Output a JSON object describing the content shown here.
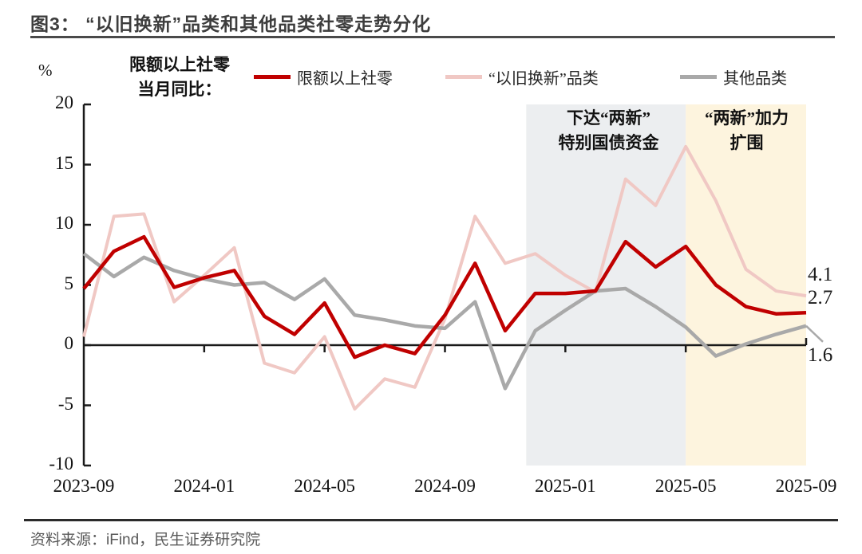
{
  "header": {
    "title": "图3：  “以旧换新”品类和其他品类社零走势分化"
  },
  "chart": {
    "unit_label": "%",
    "note_line1": "限额以上社零",
    "note_line2": "当月同比：",
    "axis_color": "#1a1a1a"
  },
  "chart_data": {
    "type": "line",
    "title": "“以旧换新”品类和其他品类社零走势分化",
    "ylabel": "%",
    "ylim": [
      -10,
      20
    ],
    "yticks": [
      20,
      15,
      10,
      5,
      0,
      -5,
      -10
    ],
    "grid": false,
    "legend_position": "top",
    "x": [
      "2023-09",
      "2023-10",
      "2023-11",
      "2023-12",
      "2024-01",
      "2024-02",
      "2024-03",
      "2024-04",
      "2024-05",
      "2024-06",
      "2024-07",
      "2024-08",
      "2024-09",
      "2024-10",
      "2024-11",
      "2024-12",
      "2025-01",
      "2025-02",
      "2025-03",
      "2025-04",
      "2025-05",
      "2025-06",
      "2025-07",
      "2025-08",
      "2025-09"
    ],
    "xtick_labels": [
      "2023-09",
      "2024-01",
      "2024-05",
      "2024-09",
      "2025-01",
      "2025-05",
      "2025-09"
    ],
    "xtick_indices": [
      0,
      4,
      8,
      12,
      16,
      20,
      24
    ],
    "series": [
      {
        "name": "限额以上社零",
        "color": "#C00000",
        "values": [
          4.7,
          7.8,
          9.0,
          4.8,
          5.6,
          6.2,
          2.4,
          0.9,
          3.5,
          -1.0,
          0.0,
          -0.7,
          2.5,
          6.8,
          1.2,
          4.3,
          4.3,
          4.5,
          8.6,
          6.5,
          8.2,
          5.0,
          3.2,
          2.6,
          2.7
        ]
      },
      {
        "name": "“以旧换新”品类",
        "color": "#F0C8C4",
        "values": [
          0.7,
          10.7,
          10.9,
          3.6,
          5.8,
          8.1,
          -1.5,
          -2.3,
          0.7,
          -5.3,
          -2.8,
          -3.5,
          2.2,
          10.7,
          6.8,
          7.6,
          5.8,
          4.4,
          13.8,
          11.6,
          16.5,
          12.0,
          6.3,
          4.5,
          4.1
        ]
      },
      {
        "name": "其他品类",
        "color": "#A9A9A9",
        "values": [
          7.6,
          5.7,
          7.3,
          6.2,
          5.5,
          5.0,
          5.2,
          3.8,
          5.5,
          2.5,
          2.1,
          1.6,
          1.4,
          3.6,
          -3.6,
          1.2,
          2.9,
          4.5,
          4.7,
          3.2,
          1.5,
          -0.9,
          0.1,
          0.9,
          1.6
        ]
      }
    ],
    "regions": [
      {
        "from_index": 14.7,
        "to_index": 20,
        "color": "#ECEEF0",
        "label_lines": [
          "下达“两新”",
          "特别国债资金"
        ]
      },
      {
        "from_index": 20,
        "to_index": 24,
        "color": "#FDF4DE",
        "label_lines": [
          "“两新”加力",
          "扩围"
        ]
      }
    ],
    "end_labels": [
      {
        "series": "“以旧换新”品类",
        "value": "4.1"
      },
      {
        "series": "限额以上社零",
        "value": "2.7"
      },
      {
        "series": "其他品类",
        "value": "1.6"
      }
    ]
  },
  "footer": {
    "source": "资料来源：iFind，民生证券研究院"
  }
}
